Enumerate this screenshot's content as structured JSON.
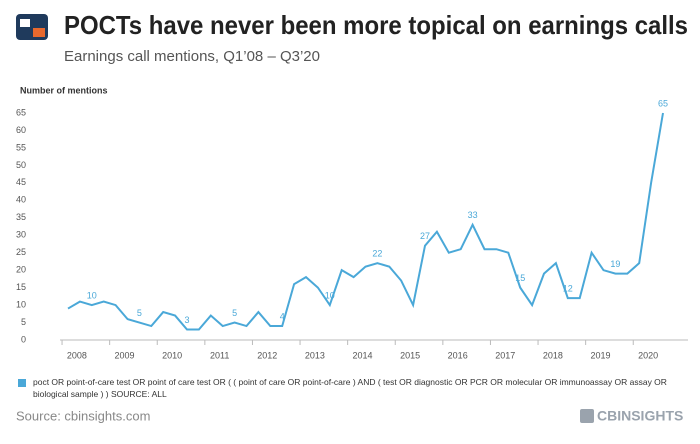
{
  "chart_data": {
    "type": "line",
    "title": "POCTs have never been more topical on earnings calls",
    "subtitle": "Earnings call mentions, Q1’08 – Q3’20",
    "y_label": "Number of mentions",
    "categories": [
      null,
      "2008",
      null,
      null,
      null,
      "2009",
      null,
      null,
      null,
      "2010",
      null,
      null,
      null,
      "2011",
      null,
      null,
      null,
      "2012",
      null,
      null,
      null,
      "2013",
      null,
      null,
      null,
      "2014",
      null,
      null,
      null,
      "2015",
      null,
      null,
      null,
      "2016",
      null,
      null,
      null,
      "2017",
      null,
      null,
      null,
      "2018",
      null,
      null,
      null,
      "2019",
      null,
      null,
      null,
      "2020",
      null
    ],
    "series": [
      {
        "name": "poct OR point-of-care test OR point of care test OR ( ( point of care OR point-of-care ) AND ( test OR diagnostic OR PCR OR molecular OR immunoassay OR assay OR biological sample ) ) SOURCE: ALL",
        "color": "#4aa8d8",
        "values": [
          9,
          11,
          10,
          11,
          10,
          6,
          5,
          4,
          8,
          7,
          3,
          3,
          7,
          4,
          5,
          4,
          8,
          4,
          4,
          16,
          18,
          15,
          10,
          20,
          18,
          21,
          22,
          21,
          17,
          10,
          27,
          31,
          25,
          26,
          33,
          26,
          26,
          25,
          15,
          10,
          19,
          22,
          12,
          12,
          25,
          20,
          19,
          19,
          22,
          45,
          65
        ],
        "value_labels": [
          null,
          null,
          "10",
          null,
          null,
          null,
          "5",
          null,
          null,
          null,
          "3",
          null,
          null,
          null,
          "5",
          null,
          null,
          null,
          "4",
          null,
          null,
          null,
          "10",
          null,
          null,
          null,
          "22",
          null,
          null,
          null,
          "27",
          null,
          null,
          null,
          "33",
          null,
          null,
          null,
          "15",
          null,
          null,
          null,
          "12",
          null,
          null,
          null,
          "19",
          null,
          null,
          null,
          "65"
        ]
      }
    ],
    "ylim": [
      0,
      65
    ],
    "yticks": [
      0,
      5,
      10,
      15,
      20,
      25,
      30,
      35,
      40,
      45,
      50,
      55,
      60,
      65
    ],
    "grid": false,
    "source": "Source: cbinsights.com",
    "brand": "CBINSIGHTS"
  }
}
